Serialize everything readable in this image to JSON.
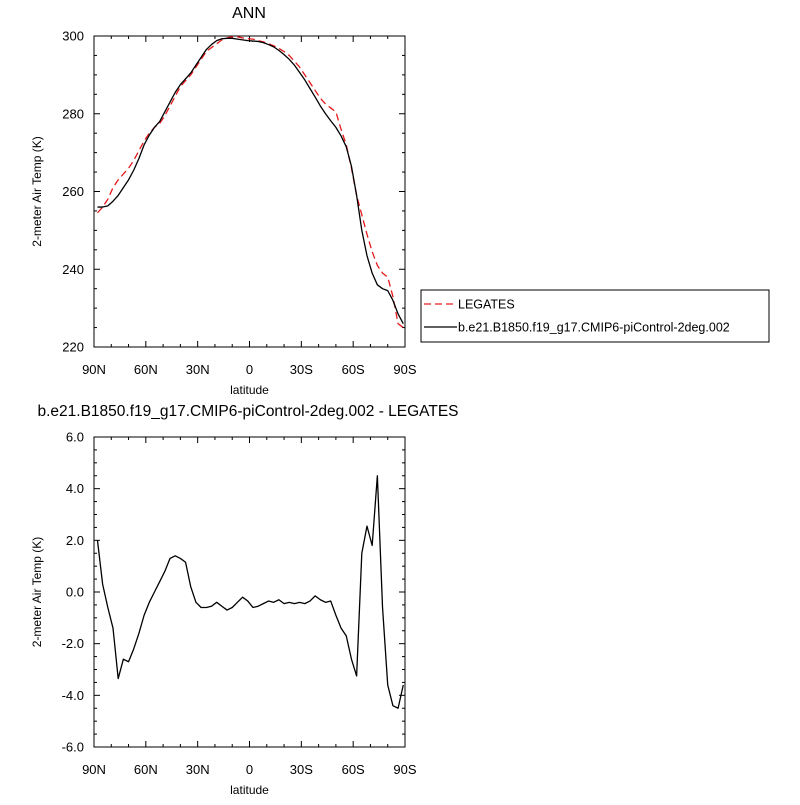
{
  "chart_data": [
    {
      "type": "line",
      "title": "ANN",
      "xlabel": "latitude",
      "ylabel": "2-meter Air Temp (K)",
      "xlim": [
        90,
        -90
      ],
      "ylim": [
        220,
        300
      ],
      "x_ticks": [
        90,
        60,
        30,
        0,
        -30,
        -60,
        -90
      ],
      "x_tick_labels": [
        "90N",
        "60N",
        "30N",
        "0",
        "30S",
        "60S",
        "90S"
      ],
      "y_ticks": [
        220,
        240,
        260,
        280,
        300
      ],
      "y_tick_labels": [
        "220",
        "240",
        "260",
        "280",
        "300"
      ],
      "grid": false,
      "legend_position": "right",
      "series": [
        {
          "name": "LEGATES",
          "color": "#e41a1c",
          "dash": "dashed",
          "x": [
            88,
            85,
            82,
            79,
            76,
            73,
            70,
            67,
            64,
            61,
            58,
            55,
            52,
            49,
            46,
            43,
            40,
            37,
            34,
            31,
            28,
            25,
            22,
            19,
            16,
            13,
            10,
            7,
            4,
            1,
            -2,
            -5,
            -8,
            -11,
            -14,
            -17,
            -20,
            -23,
            -26,
            -29,
            -32,
            -35,
            -38,
            -41,
            -44,
            -47,
            -50,
            -53,
            -56,
            -59,
            -62,
            -65,
            -68,
            -71,
            -74,
            -77,
            -80,
            -83,
            -86,
            -89
          ],
          "y": [
            254.5,
            256,
            258,
            261,
            263,
            264.5,
            266,
            268,
            270.5,
            273,
            275,
            276.5,
            277.5,
            279.5,
            282,
            284.5,
            287,
            288.5,
            290,
            292,
            294,
            296,
            297,
            298,
            299,
            299.5,
            299.8,
            299.8,
            299.5,
            299.3,
            299.2,
            298.8,
            298.5,
            298,
            297.5,
            296.8,
            296,
            295,
            293.5,
            292,
            290,
            288,
            286,
            284,
            282.5,
            281.5,
            280.5,
            276,
            272,
            266,
            259,
            254,
            249,
            244.5,
            241,
            239,
            238,
            233,
            226,
            225
          ]
        },
        {
          "name": "b.e21.B1850.f19_g17.CMIP6-piControl-2deg.002",
          "color": "#000000",
          "dash": "solid",
          "x": [
            88,
            85,
            82,
            79,
            76,
            73,
            70,
            67,
            64,
            61,
            58,
            55,
            52,
            49,
            46,
            43,
            40,
            37,
            34,
            31,
            28,
            25,
            22,
            19,
            16,
            13,
            10,
            7,
            4,
            1,
            -2,
            -5,
            -8,
            -11,
            -14,
            -17,
            -20,
            -23,
            -26,
            -29,
            -32,
            -35,
            -38,
            -41,
            -44,
            -47,
            -50,
            -53,
            -56,
            -59,
            -62,
            -65,
            -68,
            -71,
            -74,
            -77,
            -80,
            -83,
            -86,
            -89
          ],
          "y": [
            256,
            256,
            256.3,
            257.5,
            259,
            261,
            263,
            265.5,
            268.5,
            272,
            274.5,
            276.5,
            278,
            280.5,
            283,
            285.5,
            287.5,
            289,
            290.5,
            292.5,
            294.5,
            296.5,
            297.8,
            298.8,
            299.3,
            299.4,
            299.4,
            299.2,
            299,
            298.8,
            298.7,
            298.6,
            298.3,
            297.8,
            297.2,
            296.3,
            295.2,
            294,
            292.5,
            290.6,
            288.7,
            286.5,
            284.3,
            282,
            280,
            278.2,
            276.5,
            274.3,
            271.5,
            266.5,
            259,
            250,
            243.5,
            239,
            236,
            235,
            234.5,
            232,
            228.5,
            226
          ]
        }
      ]
    },
    {
      "type": "line",
      "title": "b.e21.B1850.f19_g17.CMIP6-piControl-2deg.002 - LEGATES",
      "xlabel": "latitude",
      "ylabel": "2-meter Air Temp (K)",
      "xlim": [
        90,
        -90
      ],
      "ylim": [
        -6,
        6
      ],
      "x_ticks": [
        90,
        60,
        30,
        0,
        -30,
        -60,
        -90
      ],
      "x_tick_labels": [
        "90N",
        "60N",
        "30N",
        "0",
        "30S",
        "60S",
        "90S"
      ],
      "y_ticks": [
        -6,
        -4,
        -2,
        0,
        2,
        4,
        6
      ],
      "y_tick_labels": [
        "-6.0",
        "-4.0",
        "-2.0",
        "0.0",
        "2.0",
        "4.0",
        "6.0"
      ],
      "grid": false,
      "series": [
        {
          "color": "#000000",
          "dash": "solid",
          "x": [
            88,
            85,
            82,
            79,
            76,
            73,
            70,
            67,
            64,
            61,
            58,
            55,
            52,
            49,
            46,
            43,
            40,
            37,
            34,
            31,
            28,
            25,
            22,
            19,
            16,
            13,
            10,
            7,
            4,
            1,
            -2,
            -5,
            -8,
            -11,
            -14,
            -17,
            -20,
            -23,
            -26,
            -29,
            -32,
            -35,
            -38,
            -41,
            -44,
            -47,
            -50,
            -53,
            -56,
            -59,
            -62,
            -65,
            -68,
            -71,
            -74,
            -77,
            -80,
            -83,
            -86,
            -89
          ],
          "y": [
            2.0,
            0.3,
            -0.6,
            -1.4,
            -3.35,
            -2.6,
            -2.7,
            -2.2,
            -1.6,
            -0.9,
            -0.4,
            0.0,
            0.4,
            0.8,
            1.3,
            1.4,
            1.3,
            1.15,
            0.2,
            -0.4,
            -0.6,
            -0.6,
            -0.55,
            -0.4,
            -0.55,
            -0.7,
            -0.6,
            -0.4,
            -0.2,
            -0.35,
            -0.6,
            -0.55,
            -0.45,
            -0.35,
            -0.4,
            -0.3,
            -0.45,
            -0.4,
            -0.45,
            -0.4,
            -0.45,
            -0.35,
            -0.15,
            -0.3,
            -0.4,
            -0.35,
            -0.9,
            -1.4,
            -1.7,
            -2.6,
            -3.25,
            1.5,
            2.55,
            1.8,
            4.5,
            -0.6,
            -3.6,
            -4.4,
            -4.5,
            -3.6
          ]
        }
      ]
    }
  ]
}
